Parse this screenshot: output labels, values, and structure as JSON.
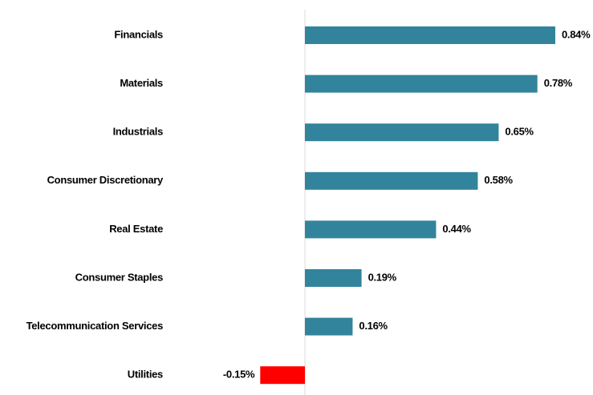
{
  "chart_data": {
    "type": "bar",
    "orientation": "horizontal",
    "categories": [
      "Financials",
      "Materials",
      "Industrials",
      "Consumer Discretionary",
      "Real Estate",
      "Consumer Staples",
      "Telecommunication Services",
      "Utilities"
    ],
    "values": [
      0.84,
      0.78,
      0.65,
      0.58,
      0.44,
      0.19,
      0.16,
      -0.15
    ],
    "value_labels": [
      "0.84%",
      "0.78%",
      "0.65%",
      "0.58%",
      "0.44%",
      "0.19%",
      "0.16%",
      "-0.15%"
    ],
    "colors": [
      "#31849b",
      "#31849b",
      "#31849b",
      "#31849b",
      "#31849b",
      "#31849b",
      "#31849b",
      "#ff0000"
    ]
  }
}
